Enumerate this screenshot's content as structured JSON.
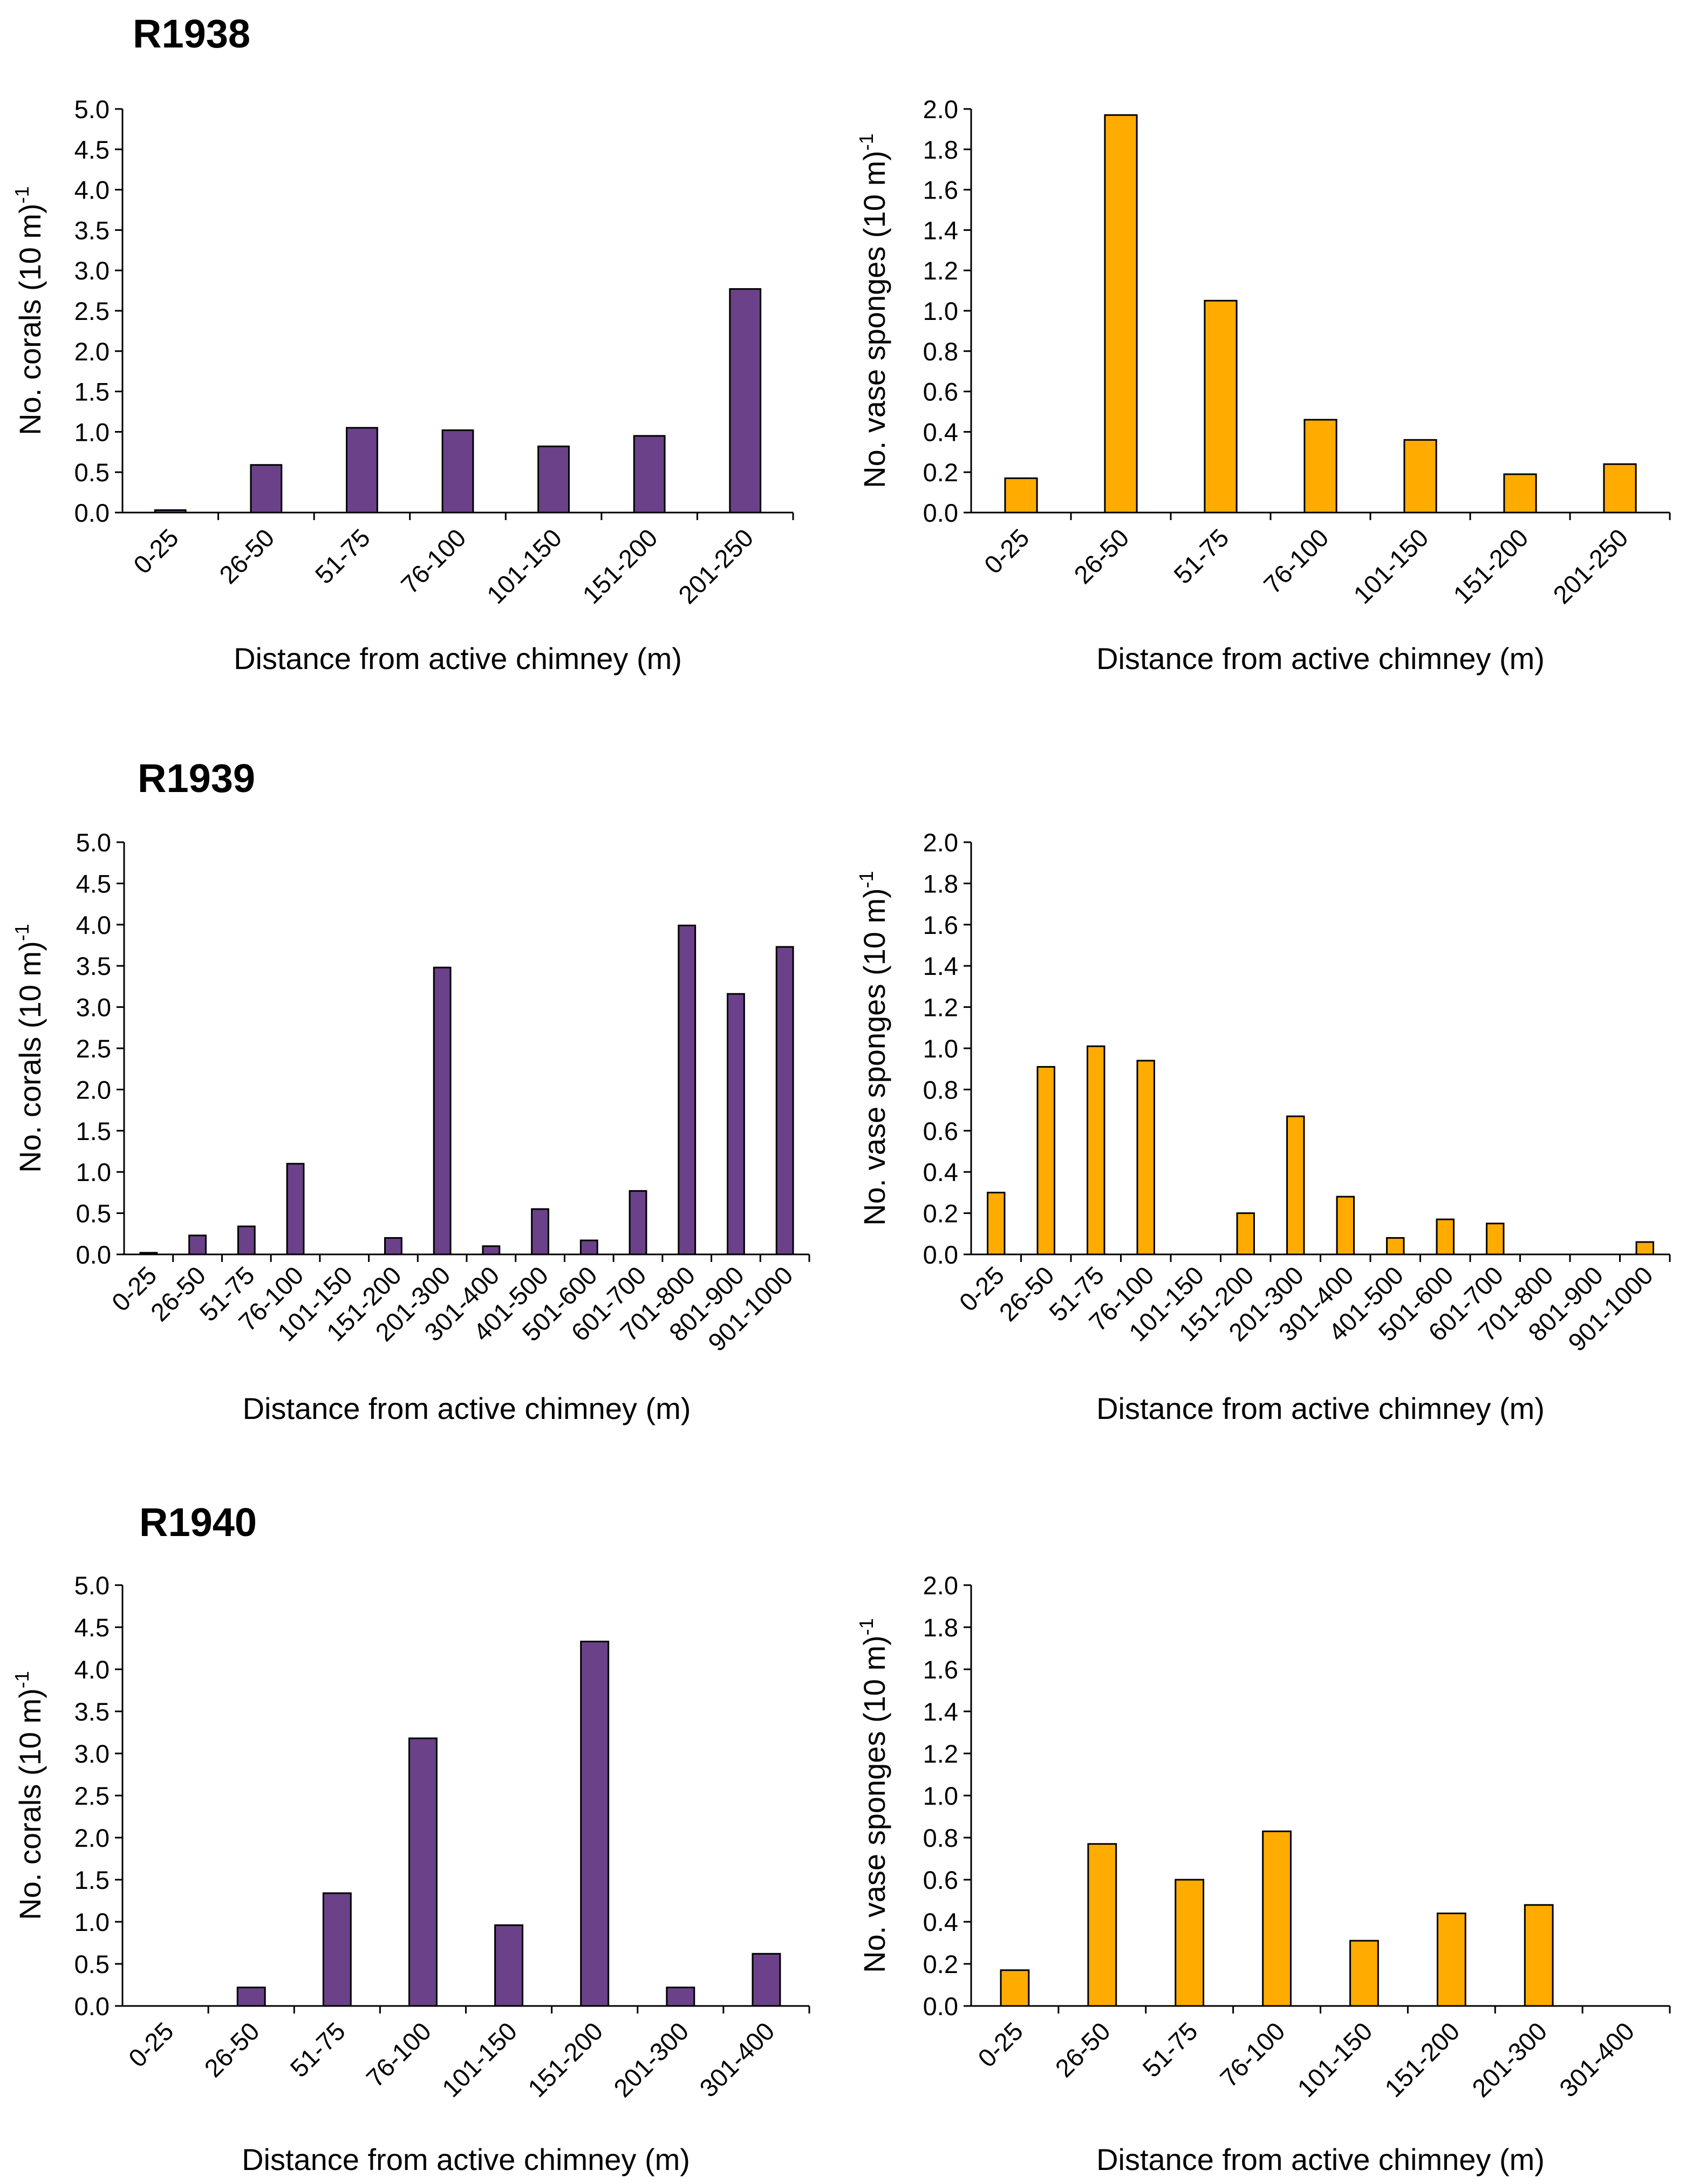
{
  "colors": {
    "corals": "#6b4189",
    "sponges": "#ffab00"
  },
  "panels": [
    {
      "title": "R1938"
    },
    {
      "title": "R1939"
    },
    {
      "title": "R1940"
    }
  ],
  "chart_data": [
    {
      "id": "r1938-corals",
      "panel": "R1938",
      "type": "bar",
      "categories": [
        "0-25",
        "26-50",
        "51-75",
        "76-100",
        "101-150",
        "151-200",
        "201-250"
      ],
      "values": [
        0.03,
        0.59,
        1.05,
        1.02,
        0.82,
        0.95,
        2.77
      ],
      "ylabel": "No. corals (10 m)",
      "ylabel_sup": "-1",
      "xlabel": "Distance from active chimney (m)",
      "ylim": [
        0,
        5
      ],
      "yticks": [
        "0.0",
        "0.5",
        "1.0",
        "1.5",
        "2.0",
        "2.5",
        "3.0",
        "3.5",
        "4.0",
        "4.5",
        "5.0"
      ],
      "color": "#6b4189"
    },
    {
      "id": "r1938-sponges",
      "panel": "R1938",
      "type": "bar",
      "categories": [
        "0-25",
        "26-50",
        "51-75",
        "76-100",
        "101-150",
        "151-200",
        "201-250"
      ],
      "values": [
        0.17,
        1.97,
        1.05,
        0.46,
        0.36,
        0.19,
        0.24
      ],
      "ylabel": "No. vase sponges (10 m)",
      "ylabel_sup": "-1",
      "xlabel": "Distance from active chimney (m)",
      "ylim": [
        0,
        2
      ],
      "yticks": [
        "0.0",
        "0.2",
        "0.4",
        "0.6",
        "0.8",
        "1.0",
        "1.2",
        "1.4",
        "1.6",
        "1.8",
        "2.0"
      ],
      "color": "#ffab00"
    },
    {
      "id": "r1939-corals",
      "panel": "R1939",
      "type": "bar",
      "categories": [
        "0-25",
        "26-50",
        "51-75",
        "76-100",
        "101-150",
        "151-200",
        "201-300",
        "301-400",
        "401-500",
        "501-600",
        "601-700",
        "701-800",
        "801-900",
        "901-1000"
      ],
      "values": [
        0.02,
        0.23,
        0.34,
        1.1,
        0,
        0.2,
        3.48,
        0.1,
        0.55,
        0.17,
        0.77,
        3.99,
        3.16,
        3.73
      ],
      "ylabel": "No. corals (10 m)",
      "ylabel_sup": "-1",
      "xlabel": "Distance from active chimney (m)",
      "ylim": [
        0,
        5
      ],
      "yticks": [
        "0.0",
        "0.5",
        "1.0",
        "1.5",
        "2.0",
        "2.5",
        "3.0",
        "3.5",
        "4.0",
        "4.5",
        "5.0"
      ],
      "color": "#6b4189"
    },
    {
      "id": "r1939-sponges",
      "panel": "R1939",
      "type": "bar",
      "categories": [
        "0-25",
        "26-50",
        "51-75",
        "76-100",
        "101-150",
        "151-200",
        "201-300",
        "301-400",
        "401-500",
        "501-600",
        "601-700",
        "701-800",
        "801-900",
        "901-1000"
      ],
      "values": [
        0.3,
        0.91,
        1.01,
        0.94,
        0,
        0.2,
        0.67,
        0.28,
        0.08,
        0.17,
        0.15,
        0,
        0,
        0.06
      ],
      "ylabel": "No. vase sponges (10 m)",
      "ylabel_sup": "-1",
      "xlabel": "Distance from active chimney (m)",
      "ylim": [
        0,
        2
      ],
      "yticks": [
        "0.0",
        "0.2",
        "0.4",
        "0.6",
        "0.8",
        "1.0",
        "1.2",
        "1.4",
        "1.6",
        "1.8",
        "2.0"
      ],
      "color": "#ffab00"
    },
    {
      "id": "r1940-corals",
      "panel": "R1940",
      "type": "bar",
      "categories": [
        "0-25",
        "26-50",
        "51-75",
        "76-100",
        "101-150",
        "151-200",
        "201-300",
        "301-400"
      ],
      "values": [
        0,
        0.22,
        1.34,
        3.18,
        0.96,
        4.33,
        0.22,
        0.62
      ],
      "ylabel": "No. corals (10 m)",
      "ylabel_sup": "-1",
      "xlabel": "Distance from active chimney (m)",
      "ylim": [
        0,
        5
      ],
      "yticks": [
        "0.0",
        "0.5",
        "1.0",
        "1.5",
        "2.0",
        "2.5",
        "3.0",
        "3.5",
        "4.0",
        "4.5",
        "5.0"
      ],
      "color": "#6b4189"
    },
    {
      "id": "r1940-sponges",
      "panel": "R1940",
      "type": "bar",
      "categories": [
        "0-25",
        "26-50",
        "51-75",
        "76-100",
        "101-150",
        "151-200",
        "201-300",
        "301-400"
      ],
      "values": [
        0.17,
        0.77,
        0.6,
        0.83,
        0.31,
        0.44,
        0.48,
        0
      ],
      "ylabel": "No. vase sponges (10 m)",
      "ylabel_sup": "-1",
      "xlabel": "Distance from active chimney (m)",
      "ylim": [
        0,
        2
      ],
      "yticks": [
        "0.0",
        "0.2",
        "0.4",
        "0.6",
        "0.8",
        "1.0",
        "1.2",
        "1.4",
        "1.6",
        "1.8",
        "2.0"
      ],
      "color": "#ffab00"
    }
  ]
}
